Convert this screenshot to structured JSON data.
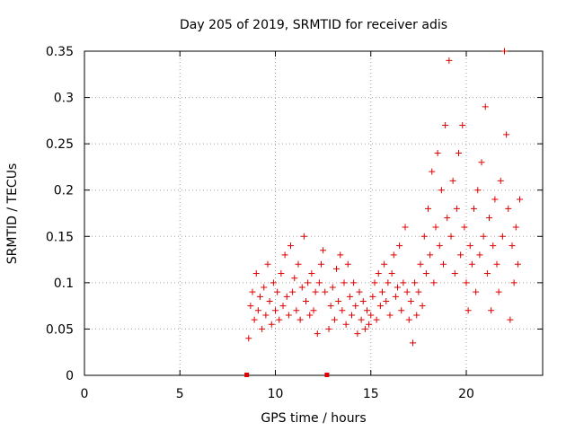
{
  "chart_data": {
    "type": "scatter",
    "title": "Day 205 of 2019, SRMTID for receiver adis",
    "xlabel": "GPS time / hours",
    "ylabel": "SRMTID / TECUs",
    "xlim": [
      0,
      24
    ],
    "ylim": [
      0,
      0.35
    ],
    "grid": true,
    "x_ticks": [
      0,
      5,
      10,
      15,
      20
    ],
    "x_tick_labels": [
      "0",
      "5",
      "10",
      "15",
      "20"
    ],
    "y_ticks": [
      0,
      0.05,
      0.1,
      0.15,
      0.2,
      0.25,
      0.3,
      0.35
    ],
    "y_tick_labels": [
      "0",
      "0.05",
      "0.1",
      "0.15",
      "0.2",
      "0.25",
      "0.3",
      "0.35"
    ],
    "marker": "plus",
    "color": "#dd0000",
    "zero_markers": [
      8.5,
      12.7
    ],
    "series": [
      {
        "name": "SRMTID",
        "points": [
          [
            8.6,
            0.04
          ],
          [
            8.7,
            0.075
          ],
          [
            8.8,
            0.09
          ],
          [
            8.9,
            0.06
          ],
          [
            9.0,
            0.11
          ],
          [
            9.1,
            0.07
          ],
          [
            9.2,
            0.085
          ],
          [
            9.3,
            0.05
          ],
          [
            9.4,
            0.095
          ],
          [
            9.5,
            0.065
          ],
          [
            9.6,
            0.12
          ],
          [
            9.7,
            0.08
          ],
          [
            9.8,
            0.055
          ],
          [
            9.9,
            0.1
          ],
          [
            10.0,
            0.07
          ],
          [
            10.1,
            0.09
          ],
          [
            10.2,
            0.06
          ],
          [
            10.3,
            0.11
          ],
          [
            10.4,
            0.075
          ],
          [
            10.5,
            0.13
          ],
          [
            10.6,
            0.085
          ],
          [
            10.7,
            0.065
          ],
          [
            10.8,
            0.14
          ],
          [
            10.9,
            0.09
          ],
          [
            11.0,
            0.105
          ],
          [
            11.1,
            0.07
          ],
          [
            11.2,
            0.12
          ],
          [
            11.3,
            0.06
          ],
          [
            11.4,
            0.095
          ],
          [
            11.5,
            0.15
          ],
          [
            11.6,
            0.08
          ],
          [
            11.7,
            0.1
          ],
          [
            11.8,
            0.065
          ],
          [
            11.9,
            0.11
          ],
          [
            12.0,
            0.07
          ],
          [
            12.1,
            0.09
          ],
          [
            12.2,
            0.045
          ],
          [
            12.3,
            0.1
          ],
          [
            12.4,
            0.12
          ],
          [
            12.5,
            0.135
          ],
          [
            12.6,
            0.09
          ],
          [
            12.8,
            0.05
          ],
          [
            12.9,
            0.075
          ],
          [
            13.0,
            0.095
          ],
          [
            13.1,
            0.06
          ],
          [
            13.2,
            0.115
          ],
          [
            13.3,
            0.08
          ],
          [
            13.4,
            0.13
          ],
          [
            13.5,
            0.07
          ],
          [
            13.6,
            0.1
          ],
          [
            13.7,
            0.055
          ],
          [
            13.8,
            0.12
          ],
          [
            13.9,
            0.085
          ],
          [
            14.0,
            0.065
          ],
          [
            14.1,
            0.1
          ],
          [
            14.2,
            0.075
          ],
          [
            14.3,
            0.045
          ],
          [
            14.4,
            0.09
          ],
          [
            14.5,
            0.06
          ],
          [
            14.6,
            0.08
          ],
          [
            14.7,
            0.05
          ],
          [
            14.8,
            0.07
          ],
          [
            14.9,
            0.055
          ],
          [
            15.0,
            0.065
          ],
          [
            15.1,
            0.085
          ],
          [
            15.2,
            0.1
          ],
          [
            15.3,
            0.06
          ],
          [
            15.4,
            0.11
          ],
          [
            15.5,
            0.075
          ],
          [
            15.6,
            0.09
          ],
          [
            15.7,
            0.12
          ],
          [
            15.8,
            0.08
          ],
          [
            15.9,
            0.1
          ],
          [
            16.0,
            0.065
          ],
          [
            16.1,
            0.11
          ],
          [
            16.2,
            0.13
          ],
          [
            16.3,
            0.085
          ],
          [
            16.4,
            0.095
          ],
          [
            16.5,
            0.14
          ],
          [
            16.6,
            0.07
          ],
          [
            16.7,
            0.1
          ],
          [
            16.8,
            0.16
          ],
          [
            16.9,
            0.09
          ],
          [
            17.0,
            0.06
          ],
          [
            17.1,
            0.08
          ],
          [
            17.2,
            0.035
          ],
          [
            17.3,
            0.1
          ],
          [
            17.4,
            0.065
          ],
          [
            17.5,
            0.09
          ],
          [
            17.6,
            0.12
          ],
          [
            17.7,
            0.075
          ],
          [
            17.8,
            0.15
          ],
          [
            17.9,
            0.11
          ],
          [
            18.0,
            0.18
          ],
          [
            18.1,
            0.13
          ],
          [
            18.2,
            0.22
          ],
          [
            18.3,
            0.1
          ],
          [
            18.4,
            0.16
          ],
          [
            18.5,
            0.24
          ],
          [
            18.6,
            0.14
          ],
          [
            18.7,
            0.2
          ],
          [
            18.8,
            0.12
          ],
          [
            18.9,
            0.27
          ],
          [
            19.0,
            0.17
          ],
          [
            19.1,
            0.34
          ],
          [
            19.2,
            0.15
          ],
          [
            19.3,
            0.21
          ],
          [
            19.4,
            0.11
          ],
          [
            19.5,
            0.18
          ],
          [
            19.6,
            0.24
          ],
          [
            19.7,
            0.13
          ],
          [
            19.8,
            0.27
          ],
          [
            19.9,
            0.16
          ],
          [
            20.0,
            0.1
          ],
          [
            20.1,
            0.07
          ],
          [
            20.2,
            0.14
          ],
          [
            20.3,
            0.12
          ],
          [
            20.4,
            0.18
          ],
          [
            20.5,
            0.09
          ],
          [
            20.6,
            0.2
          ],
          [
            20.7,
            0.13
          ],
          [
            20.8,
            0.23
          ],
          [
            20.9,
            0.15
          ],
          [
            21.0,
            0.29
          ],
          [
            21.1,
            0.11
          ],
          [
            21.2,
            0.17
          ],
          [
            21.3,
            0.07
          ],
          [
            21.4,
            0.14
          ],
          [
            21.5,
            0.19
          ],
          [
            21.6,
            0.12
          ],
          [
            21.7,
            0.09
          ],
          [
            21.8,
            0.21
          ],
          [
            21.9,
            0.15
          ],
          [
            22.0,
            0.35
          ],
          [
            22.1,
            0.26
          ],
          [
            22.2,
            0.18
          ],
          [
            22.3,
            0.06
          ],
          [
            22.4,
            0.14
          ],
          [
            22.5,
            0.1
          ],
          [
            22.6,
            0.16
          ],
          [
            22.7,
            0.12
          ],
          [
            22.8,
            0.19
          ]
        ]
      }
    ]
  }
}
